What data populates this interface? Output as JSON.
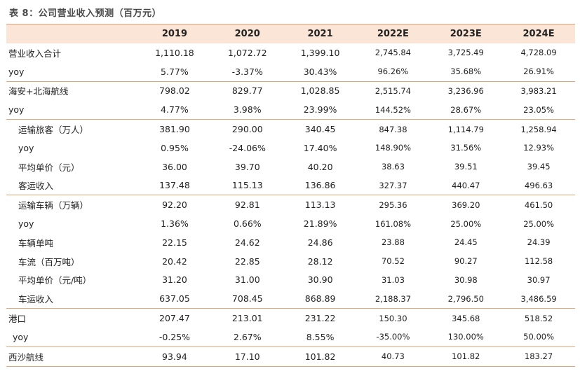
{
  "title": "表 8：公司营业收入预测（百万元）",
  "headers": [
    "",
    "2019",
    "2020",
    "2021",
    "2022E",
    "2023E",
    "2024E"
  ],
  "rows": [
    {
      "label": "营业收入合计",
      "values": [
        "1,110.18",
        "1,072.72",
        "1,399.10",
        "2,745.84",
        "3,725.49",
        "4,728.09"
      ]
    },
    {
      "label": "yoy",
      "values": [
        "5.77%",
        "-3.37%",
        "30.43%",
        "96.26%",
        "35.68%",
        "26.91%"
      ]
    },
    {
      "label": "海安+北海航线",
      "values": [
        "798.02",
        "829.77",
        "1,028.85",
        "2,515.74",
        "3,236.96",
        "3,983.21"
      ]
    },
    {
      "label": "yoy",
      "values": [
        "4.77%",
        "3.98%",
        "23.99%",
        "144.52%",
        "28.67%",
        "23.05%"
      ]
    },
    {
      "label": "运输旅客（万人）",
      "values": [
        "381.90",
        "290.00",
        "340.45",
        "847.38",
        "1,114.79",
        "1,258.94"
      ]
    },
    {
      "label": "yoy",
      "values": [
        "0.95%",
        "-24.06%",
        "17.40%",
        "148.90%",
        "31.56%",
        "12.93%"
      ]
    },
    {
      "label": "平均单价（元）",
      "values": [
        "36.00",
        "39.70",
        "40.20",
        "38.63",
        "39.51",
        "39.45"
      ]
    },
    {
      "label": "客运收入",
      "values": [
        "137.48",
        "115.13",
        "136.86",
        "327.37",
        "440.47",
        "496.63"
      ]
    },
    {
      "label": "运输车辆（万辆）",
      "values": [
        "92.20",
        "92.81",
        "113.13",
        "295.36",
        "369.20",
        "461.50"
      ]
    },
    {
      "label": "yoy",
      "values": [
        "1.36%",
        "0.66%",
        "21.89%",
        "161.08%",
        "25.00%",
        "25.00%"
      ]
    },
    {
      "label": "车辆单吨",
      "values": [
        "22.15",
        "24.62",
        "24.86",
        "23.88",
        "24.45",
        "24.39"
      ]
    },
    {
      "label": "车流（百万吨）",
      "values": [
        "20.42",
        "22.85",
        "28.12",
        "70.52",
        "90.27",
        "112.58"
      ]
    },
    {
      "label": "平均单价（元/吨）",
      "values": [
        "31.20",
        "31.00",
        "30.90",
        "31.03",
        "30.98",
        "30.97"
      ]
    },
    {
      "label": "车运收入",
      "values": [
        "637.05",
        "708.45",
        "868.89",
        "2,188.37",
        "2,796.50",
        "3,486.59"
      ]
    },
    {
      "label": "港口",
      "values": [
        "207.47",
        "213.01",
        "231.22",
        "150.30",
        "345.68",
        "518.52"
      ]
    },
    {
      "label": "yoy",
      "values": [
        "-0.25%",
        "2.67%",
        "8.55%",
        "-35.00%",
        "130.00%",
        "50.00%"
      ]
    },
    {
      "label": "西沙航线",
      "values": [
        "93.94",
        "17.10",
        "101.82",
        "40.73",
        "101.82",
        "183.27"
      ]
    }
  ]
}
